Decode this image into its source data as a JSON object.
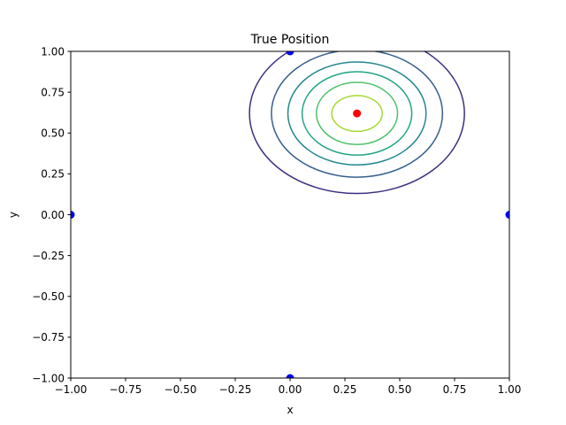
{
  "chart_data": {
    "type": "contour",
    "title": "True Position",
    "xlabel": "x",
    "ylabel": "y",
    "xlim": [
      -1.0,
      1.0
    ],
    "ylim": [
      -1.0,
      1.0
    ],
    "xticks": [
      "−1.00",
      "−0.75",
      "−0.50",
      "−0.25",
      "0.00",
      "0.25",
      "0.50",
      "0.75",
      "1.00"
    ],
    "xtick_values": [
      -1.0,
      -0.75,
      -0.5,
      -0.25,
      0.0,
      0.25,
      0.5,
      0.75,
      1.0
    ],
    "yticks": [
      "−1.00",
      "−0.75",
      "−0.50",
      "−0.25",
      "0.00",
      "0.25",
      "0.50",
      "0.75",
      "1.00"
    ],
    "ytick_values": [
      -1.0,
      -0.75,
      -0.5,
      -0.25,
      0.0,
      0.25,
      0.5,
      0.75,
      1.0
    ],
    "grid": false,
    "colormap": "viridis",
    "contours": {
      "center": [
        0.305,
        0.62
      ],
      "levels": [
        {
          "rx": 0.49,
          "ry": 0.49,
          "color": "#3b2f80"
        },
        {
          "rx": 0.39,
          "ry": 0.39,
          "color": "#355f8d"
        },
        {
          "rx": 0.315,
          "ry": 0.315,
          "color": "#24868e"
        },
        {
          "rx": 0.25,
          "ry": 0.255,
          "color": "#21a685"
        },
        {
          "rx": 0.185,
          "ry": 0.19,
          "color": "#4fc16a"
        },
        {
          "rx": 0.115,
          "ry": 0.11,
          "color": "#a5db36"
        }
      ]
    },
    "anchors": {
      "color": "#0000ff",
      "points": [
        [
          -1.0,
          0.0
        ],
        [
          0.0,
          1.0
        ],
        [
          1.0,
          0.0
        ],
        [
          0.0,
          -1.0
        ]
      ]
    },
    "true_position": {
      "color": "#ff0000",
      "point": [
        0.305,
        0.62
      ]
    }
  }
}
